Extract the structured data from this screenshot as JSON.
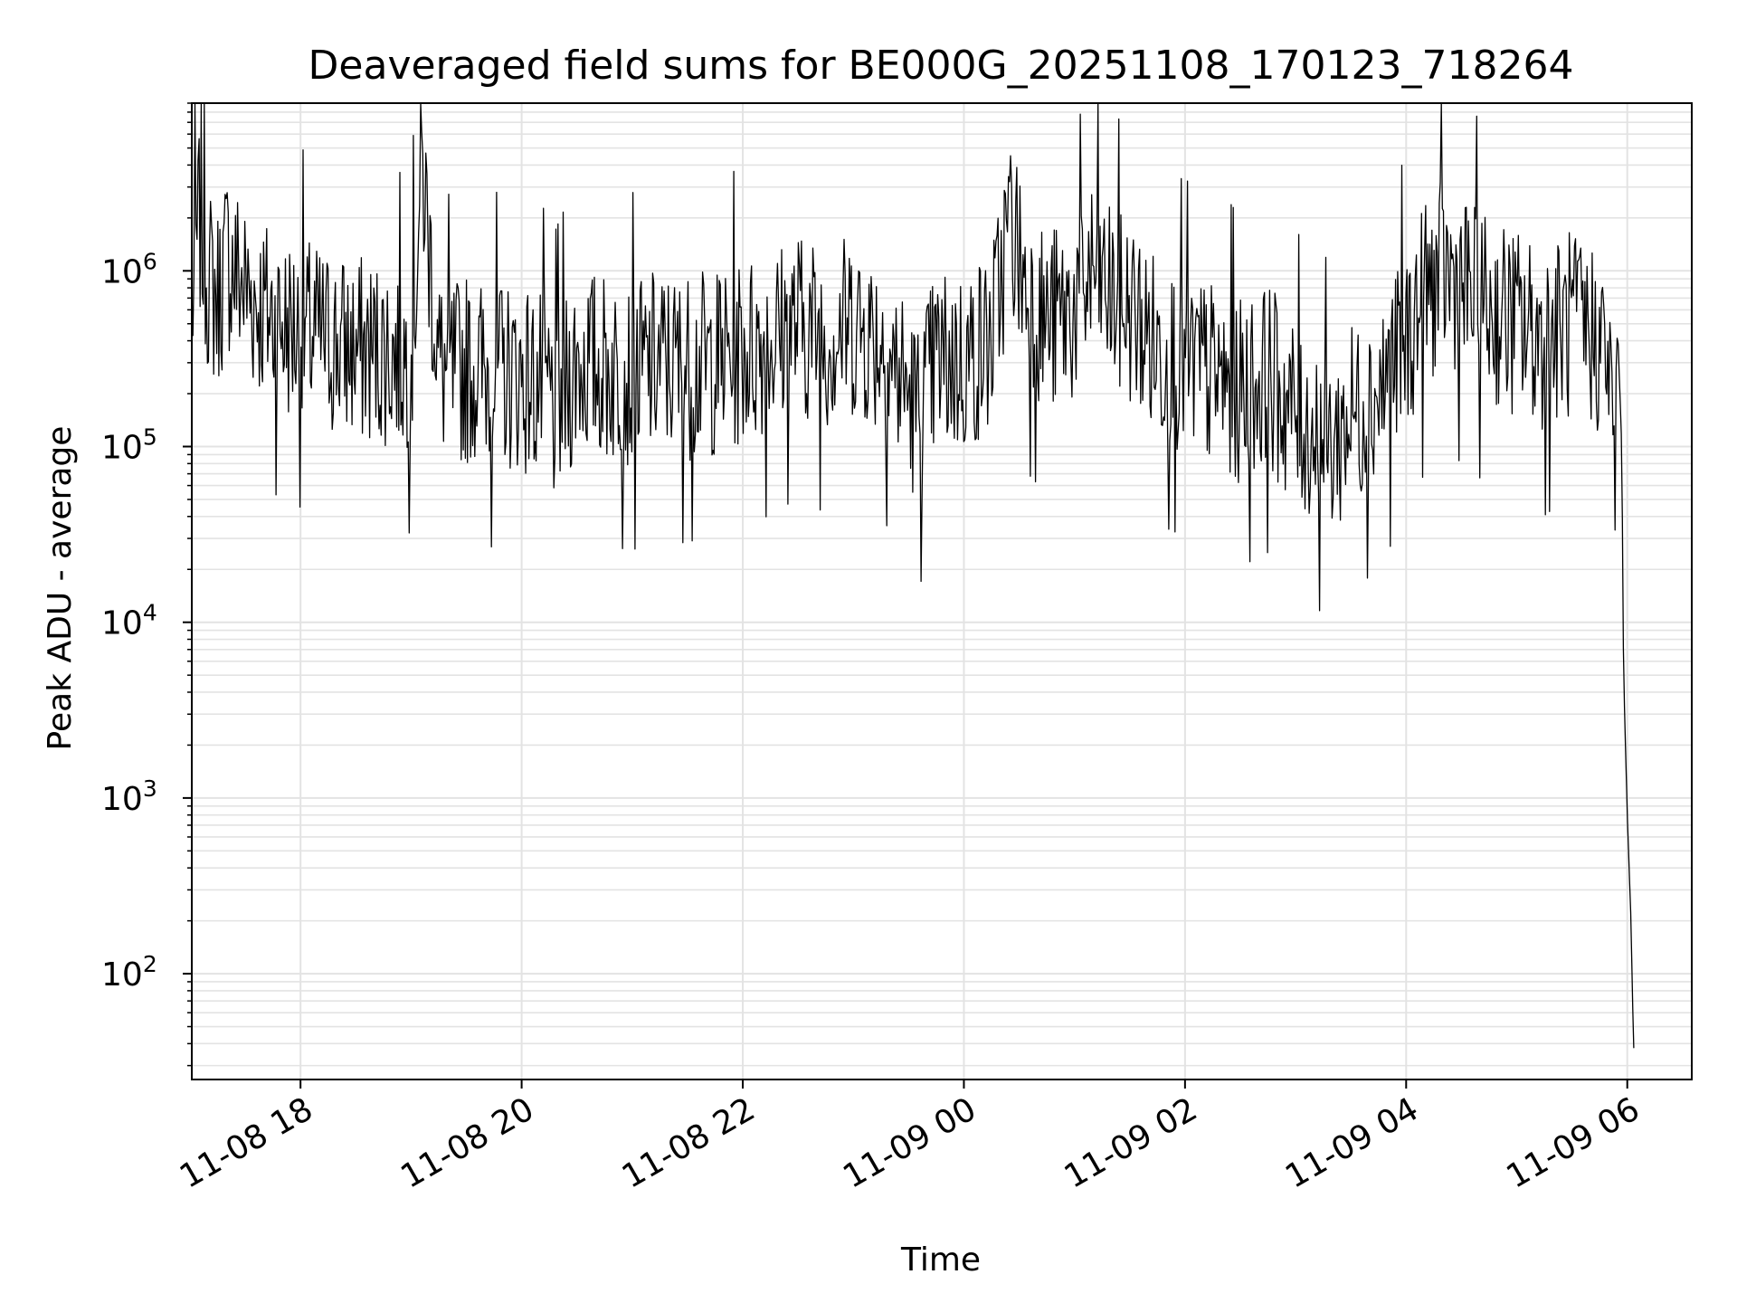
{
  "chart_data": {
    "type": "line",
    "title": "Deaveraged field sums for BE000G_20251108_170123_718264",
    "xlabel": "Time",
    "ylabel": "Peak ADU - average",
    "yscale": "log",
    "ylim": [
      25,
      9000000
    ],
    "xlim": [
      "2025-11-08 17:01",
      "2025-11-09 06:35"
    ],
    "x_ticks": [
      {
        "t": "2025-11-08 18:00",
        "label": "11-08 18"
      },
      {
        "t": "2025-11-08 20:00",
        "label": "11-08 20"
      },
      {
        "t": "2025-11-08 22:00",
        "label": "11-08 22"
      },
      {
        "t": "2025-11-09 00:00",
        "label": "11-09 00"
      },
      {
        "t": "2025-11-09 02:00",
        "label": "11-09 02"
      },
      {
        "t": "2025-11-09 04:00",
        "label": "11-09 04"
      },
      {
        "t": "2025-11-09 06:00",
        "label": "11-09 06"
      }
    ],
    "y_ticks": [
      {
        "value": 100,
        "base": "10",
        "exp": "2"
      },
      {
        "value": 1000,
        "base": "10",
        "exp": "3"
      },
      {
        "value": 10000,
        "base": "10",
        "exp": "4"
      },
      {
        "value": 100000,
        "base": "10",
        "exp": "5"
      },
      {
        "value": 1000000,
        "base": "10",
        "exp": "6"
      }
    ],
    "grid": true,
    "line_color": "#000000",
    "grid_color": "#e3e3e3",
    "series": [
      {
        "x": [
          "2025-11-08 17:01",
          "2025-11-08 17:05",
          "2025-11-08 17:10",
          "2025-11-08 17:15",
          "2025-11-08 17:20",
          "2025-11-08 17:30",
          "2025-11-08 17:40",
          "2025-11-08 17:50",
          "2025-11-08 18:00",
          "2025-11-08 18:15",
          "2025-11-08 18:30",
          "2025-11-08 18:45",
          "2025-11-08 19:00",
          "2025-11-08 19:06",
          "2025-11-08 19:15",
          "2025-11-08 19:20",
          "2025-11-08 19:30",
          "2025-11-08 19:45",
          "2025-11-08 20:00",
          "2025-11-08 20:15",
          "2025-11-08 20:18",
          "2025-11-08 20:30",
          "2025-11-08 20:45",
          "2025-11-08 21:00",
          "2025-11-08 21:15",
          "2025-11-08 21:30",
          "2025-11-08 21:45",
          "2025-11-08 22:00",
          "2025-11-08 22:15",
          "2025-11-08 22:30",
          "2025-11-08 22:45",
          "2025-11-08 23:00",
          "2025-11-08 23:15",
          "2025-11-08 23:30",
          "2025-11-08 23:35",
          "2025-11-08 23:45",
          "2025-11-09 00:00",
          "2025-11-09 00:15",
          "2025-11-09 00:25",
          "2025-11-09 00:35",
          "2025-11-09 00:45",
          "2025-11-09 01:00",
          "2025-11-09 01:10",
          "2025-11-09 01:20",
          "2025-11-09 01:30",
          "2025-11-09 01:45",
          "2025-11-09 02:00",
          "2025-11-09 02:15",
          "2025-11-09 02:30",
          "2025-11-09 02:45",
          "2025-11-09 03:00",
          "2025-11-09 03:10",
          "2025-11-09 03:20",
          "2025-11-09 03:30",
          "2025-11-09 03:45",
          "2025-11-09 04:00",
          "2025-11-09 04:10",
          "2025-11-09 04:20",
          "2025-11-09 04:30",
          "2025-11-09 04:45",
          "2025-11-09 05:00",
          "2025-11-09 05:15",
          "2025-11-09 05:30",
          "2025-11-09 05:45",
          "2025-11-09 05:50",
          "2025-11-09 05:53",
          "2025-11-09 05:55",
          "2025-11-09 05:57",
          "2025-11-09 05:58",
          "2025-11-09 06:00",
          "2025-11-09 06:02",
          "2025-11-09 06:03",
          "2025-11-09 06:04"
        ],
        "values": [
          600000,
          2000000,
          900000,
          700000,
          1200000,
          800000,
          600000,
          500000,
          450000,
          400000,
          350000,
          350000,
          320000,
          4000000,
          300000,
          250000,
          280000,
          260000,
          250000,
          200000,
          150000,
          300000,
          280000,
          250000,
          300000,
          280000,
          300000,
          350000,
          400000,
          500000,
          420000,
          500000,
          400000,
          200000,
          150000,
          300000,
          300000,
          400000,
          2000000,
          700000,
          500000,
          600000,
          1000000,
          700000,
          600000,
          350000,
          300000,
          250000,
          200000,
          250000,
          150000,
          120000,
          100000,
          150000,
          200000,
          400000,
          700000,
          1000000,
          800000,
          600000,
          500000,
          400000,
          500000,
          400000,
          300000,
          60000,
          400000,
          100000,
          5000,
          800,
          200,
          60,
          25
        ]
      }
    ]
  }
}
